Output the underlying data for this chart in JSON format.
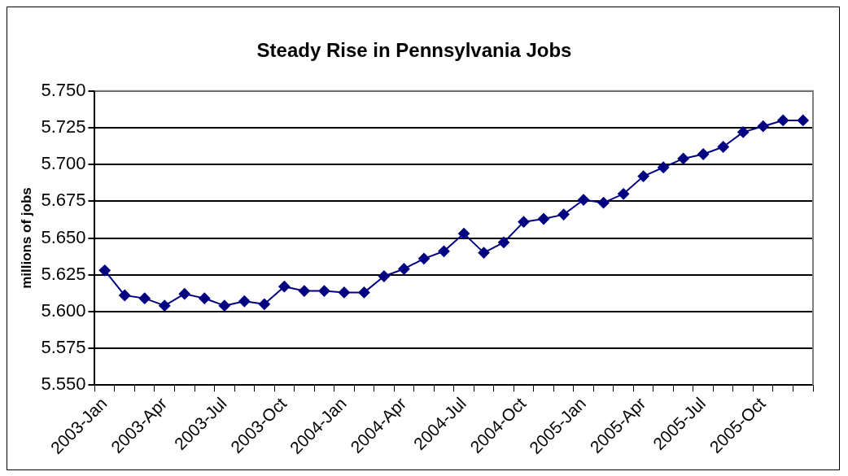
{
  "chart_data": {
    "type": "line",
    "title": "Steady Rise in Pennsylvania Jobs",
    "ylabel": "millions of jobs",
    "categories": [
      "2003-Jan",
      null,
      null,
      "2003-Apr",
      null,
      null,
      "2003-Jul",
      null,
      null,
      "2003-Oct",
      null,
      null,
      "2004-Jan",
      null,
      null,
      "2004-Apr",
      null,
      null,
      "2004-Jul",
      null,
      null,
      "2004-Oct",
      null,
      null,
      "2005-Jan",
      null,
      null,
      "2005-Apr",
      null,
      null,
      "2005-Jul",
      null,
      null,
      "2005-Oct",
      null,
      null
    ],
    "series": [
      {
        "color": "#000080",
        "values": [
          5.628,
          5.611,
          5.609,
          5.604,
          5.612,
          5.609,
          5.604,
          5.607,
          5.605,
          5.617,
          5.614,
          5.614,
          5.613,
          5.613,
          5.624,
          5.629,
          5.636,
          5.641,
          5.653,
          5.64,
          5.647,
          5.661,
          5.663,
          5.666,
          5.676,
          5.674,
          5.68,
          5.692,
          5.698,
          5.704,
          5.707,
          5.712,
          5.722,
          5.726,
          5.73,
          5.73
        ]
      }
    ],
    "ylim": [
      5.55,
      5.75
    ],
    "yticks": [
      {
        "value": 5.55,
        "label": "5.550"
      },
      {
        "value": 5.575,
        "label": "5.575"
      },
      {
        "value": 5.6,
        "label": "5.600"
      },
      {
        "value": 5.625,
        "label": "5.625"
      },
      {
        "value": 5.65,
        "label": "5.650"
      },
      {
        "value": 5.675,
        "label": "5.675"
      },
      {
        "value": 5.7,
        "label": "5.700"
      },
      {
        "value": 5.725,
        "label": "5.725"
      },
      {
        "value": 5.75,
        "label": "5.750"
      }
    ],
    "grid": "y",
    "legend": false,
    "marker": "diamond",
    "line_style": "solid"
  }
}
